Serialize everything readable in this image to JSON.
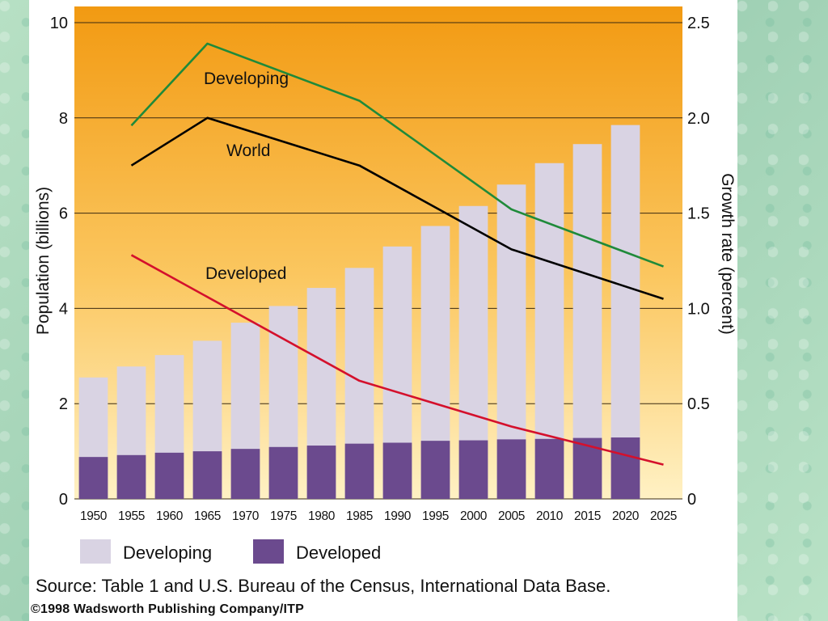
{
  "colors": {
    "developing_bar": "#d9d3e3",
    "developed_bar": "#6b4a8e",
    "developing_line": "#1f8a3a",
    "world_line": "#000000",
    "developed_line": "#d4102c",
    "plot_bg_top": "#f2a21a",
    "plot_bg_bottom": "#ffe7a6"
  },
  "chart_data": {
    "type": "bar",
    "title": "",
    "categories": [
      "1950",
      "1955",
      "1960",
      "1965",
      "1970",
      "1975",
      "1980",
      "1985",
      "1990",
      "1995",
      "2000",
      "2005",
      "2010",
      "2015",
      "2020",
      "2025"
    ],
    "ylabel": "Population (billions)",
    "ylabel_right": "Growth rate (percent)",
    "ylim": [
      0,
      10
    ],
    "ylim_right": [
      0,
      2.5
    ],
    "yticks": [
      "0",
      "2",
      "4",
      "6",
      "8",
      "10"
    ],
    "yticks_right": [
      "0",
      "0.5",
      "1.0",
      "1.5",
      "2.0",
      "2.5"
    ],
    "series": [
      {
        "name": "Developing",
        "values": [
          2.55,
          2.78,
          3.02,
          3.32,
          3.7,
          4.05,
          4.43,
          4.85,
          5.3,
          5.73,
          6.15,
          6.6,
          7.05,
          7.45,
          7.85,
          null
        ]
      },
      {
        "name": "Developed",
        "values": [
          0.88,
          0.92,
          0.97,
          1.0,
          1.05,
          1.09,
          1.12,
          1.16,
          1.18,
          1.22,
          1.23,
          1.25,
          1.26,
          1.28,
          1.29,
          null
        ]
      }
    ],
    "lines": [
      {
        "name": "Developing",
        "label": "Developing",
        "values": [
          null,
          1.96,
          null,
          2.39,
          null,
          null,
          null,
          2.09,
          null,
          null,
          null,
          1.52,
          null,
          null,
          null,
          1.22
        ]
      },
      {
        "name": "World",
        "label": "World",
        "values": [
          null,
          1.75,
          null,
          2.0,
          null,
          null,
          null,
          1.75,
          null,
          null,
          null,
          1.31,
          null,
          null,
          null,
          1.05
        ]
      },
      {
        "name": "Developed",
        "label": "Developed",
        "values": [
          null,
          1.28,
          null,
          null,
          null,
          null,
          null,
          0.62,
          null,
          null,
          null,
          0.38,
          null,
          null,
          null,
          0.18
        ]
      }
    ],
    "legend": [
      {
        "label": "Developing"
      },
      {
        "label": "Developed"
      }
    ]
  },
  "footer": {
    "source": "Source: Table 1 and U.S. Bureau of the Census, International Data Base.",
    "copyright": "©1998 Wadsworth Publishing Company/ITP"
  }
}
